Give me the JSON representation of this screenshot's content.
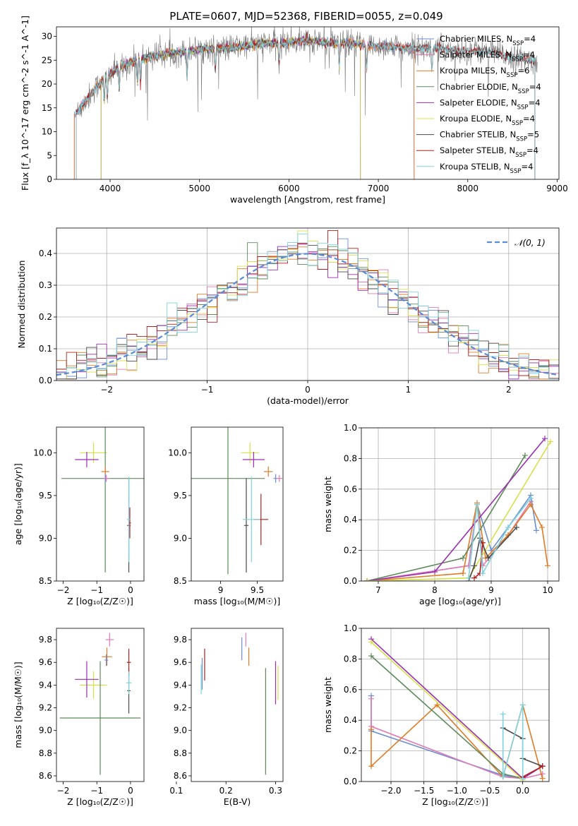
{
  "title": "PLATE=0607, MJD=52368, FIBERID=0055, z=0.049",
  "colors": {
    "chabrier_miles": "#6b8fd0",
    "salpeter_miles": "#e27ab5",
    "kroupa_miles": "#e07b26",
    "chabrier_elodie": "#5e8a5a",
    "salpeter_elodie": "#9a2fb0",
    "kroupa_elodie": "#d7e048",
    "chabrier_stelib": "#4a4a4a",
    "salpeter_stelib": "#b41f1f",
    "kroupa_stelib": "#7fd3dc",
    "normal": "#5b8ad6",
    "grid": "#b0b0b0"
  },
  "chart_data": [
    {
      "type": "line",
      "xlabel": "wavelength [Angstrom, rest frame]",
      "ylabel": "Flux [f_λ 10^-17 erg cm^-2 s^-1 A^-1]",
      "xlim": [
        3400,
        9020
      ],
      "ylim": [
        0,
        32
      ],
      "xticks": [
        "4000",
        "5000",
        "6000",
        "7000",
        "8000",
        "9000"
      ],
      "yticks": [
        "0",
        "5",
        "10",
        "15",
        "20",
        "25",
        "30"
      ],
      "legend_position": "right",
      "legend": [
        {
          "key": "chabrier_miles",
          "label": "Chabrier MILES, N",
          "sub": "SSP",
          "n": "=4"
        },
        {
          "key": "salpeter_miles",
          "label": "Salpeter MILES, N",
          "sub": "SSP",
          "n": "=4"
        },
        {
          "key": "kroupa_miles",
          "label": "Kroupa MILES, N",
          "sub": "SSP",
          "n": "=6"
        },
        {
          "key": "chabrier_elodie",
          "label": "Chabrier ELODIE, N",
          "sub": "SSP",
          "n": "=4"
        },
        {
          "key": "salpeter_elodie",
          "label": "Salpeter ELODIE, N",
          "sub": "SSP",
          "n": "=4"
        },
        {
          "key": "kroupa_elodie",
          "label": "Kroupa ELODIE, N",
          "sub": "SSP",
          "n": "=4"
        },
        {
          "key": "chabrier_stelib",
          "label": "Chabrier STELIB, N",
          "sub": "SSP",
          "n": "=5"
        },
        {
          "key": "salpeter_stelib",
          "label": "Salpeter STELIB, N",
          "sub": "SSP",
          "n": "=4"
        },
        {
          "key": "kroupa_stelib",
          "label": "Kroupa STELIB, N",
          "sub": "SSP",
          "n": "=4"
        }
      ],
      "data_spectrum": {
        "x": [
          3650,
          3750,
          3850,
          3950,
          4100,
          4300,
          4500,
          4700,
          4900,
          5100,
          5300,
          5500,
          5700,
          5900,
          6100,
          6300,
          6500,
          6700,
          6900,
          7100,
          7300,
          7500,
          7700,
          7900,
          8100,
          8300,
          8500,
          8700
        ],
        "y": [
          14.5,
          17,
          19.5,
          21.5,
          23.5,
          25,
          26,
          26.5,
          27,
          27.5,
          27.5,
          28,
          28.5,
          28.5,
          29,
          29,
          28.5,
          28.5,
          28,
          28,
          27.5,
          27.5,
          27.5,
          27,
          27,
          26.5,
          25.5,
          25
        ]
      },
      "model_ranges": {
        "chabrier_miles": [
          3600,
          7400
        ],
        "salpeter_miles": [
          3600,
          7400
        ],
        "kroupa_miles": [
          3600,
          7400
        ],
        "chabrier_elodie": [
          3900,
          6800
        ],
        "salpeter_elodie": [
          3900,
          6800
        ],
        "kroupa_elodie": [
          3900,
          6800
        ],
        "chabrier_stelib": [
          3620,
          8750
        ],
        "salpeter_stelib": [
          3620,
          8750
        ],
        "kroupa_stelib": [
          3620,
          8750
        ]
      },
      "absorption_lines": [
        3934,
        3969,
        4102,
        4307,
        4340,
        4861,
        5176,
        5890,
        6563,
        6870,
        7600
      ]
    },
    {
      "type": "bar",
      "subtype": "step-histogram",
      "xlabel": "(data-model)/error",
      "ylabel": "Normed distribution",
      "xlim": [
        -2.5,
        2.5
      ],
      "ylim": [
        0,
        0.48
      ],
      "xticks": [
        "−2",
        "−1",
        "0",
        "1",
        "2"
      ],
      "yticks": [
        "0.0",
        "0.1",
        "0.2",
        "0.3",
        "0.4"
      ],
      "bin_width": 0.1,
      "grid": true,
      "legend_position": "top-right",
      "legend": [
        {
          "key": "normal",
          "label": "𝒩(0, 1)"
        }
      ],
      "normal_curve": {
        "mean": 0,
        "sigma": 1
      }
    },
    {
      "type": "scatter",
      "subtype": "errorbar",
      "xlabel": "Z [log₁₀(Z/Z☉)]",
      "ylabel": "age  [log₁₀(age/yr)]",
      "xlim": [
        -2.2,
        0.4
      ],
      "ylim": [
        8.5,
        10.3
      ],
      "xticks": [
        -2,
        -1,
        0
      ],
      "yticks": [
        8.5,
        9.0,
        9.5,
        10.0
      ],
      "points": [
        {
          "key": "kroupa_elodie",
          "x": -1.1,
          "y": 10.0,
          "xerr": 0.4,
          "yerr": 0.12
        },
        {
          "key": "salpeter_elodie",
          "x": -1.3,
          "y": 9.92,
          "xerr": 0.35,
          "yerr": 0.09
        },
        {
          "key": "chabrier_elodie",
          "x": -0.75,
          "y": 9.7,
          "xerr": 1.3,
          "yerr": 1.1
        },
        {
          "key": "kroupa_miles",
          "x": -0.75,
          "y": 9.78,
          "xerr": 0.12,
          "yerr": 0.06
        },
        {
          "key": "chabrier_miles",
          "x": -0.75,
          "y": 9.7,
          "xerr": 0.06,
          "yerr": 0.05
        },
        {
          "key": "salpeter_miles",
          "x": -0.72,
          "y": 9.7,
          "xerr": 0.1,
          "yerr": 0.04
        },
        {
          "key": "chabrier_stelib",
          "x": -0.05,
          "y": 9.15,
          "xerr": 0.05,
          "yerr": 0.55
        },
        {
          "key": "salpeter_stelib",
          "x": -0.02,
          "y": 9.18,
          "xerr": 0.03,
          "yerr": 0.18
        },
        {
          "key": "kroupa_stelib",
          "x": -0.05,
          "y": 9.22,
          "xerr": 0.06,
          "yerr": 0.5
        }
      ]
    },
    {
      "type": "scatter",
      "subtype": "errorbar",
      "xlabel": "mass [log₁₀(M/M☉)]",
      "ylabel": "",
      "xlim": [
        8.6,
        9.85
      ],
      "ylim": [
        8.5,
        10.3
      ],
      "xticks": [
        9.0,
        9.5
      ],
      "yticks": [
        8.5,
        9.0,
        9.5,
        10.0
      ],
      "points": [
        {
          "key": "kroupa_elodie",
          "x": 9.4,
          "y": 10.0,
          "xerr": 0.12,
          "yerr": 0.12
        },
        {
          "key": "salpeter_elodie",
          "x": 9.45,
          "y": 9.92,
          "xerr": 0.15,
          "yerr": 0.09
        },
        {
          "key": "chabrier_elodie",
          "x": 9.1,
          "y": 9.7,
          "xerr": 0.5,
          "yerr": 1.12
        },
        {
          "key": "kroupa_miles",
          "x": 9.65,
          "y": 9.78,
          "xerr": 0.06,
          "yerr": 0.06
        },
        {
          "key": "chabrier_miles",
          "x": 9.75,
          "y": 9.7,
          "xerr": 0.03,
          "yerr": 0.05
        },
        {
          "key": "salpeter_miles",
          "x": 9.8,
          "y": 9.7,
          "xerr": 0.04,
          "yerr": 0.04
        },
        {
          "key": "chabrier_stelib",
          "x": 9.35,
          "y": 9.15,
          "xerr": 0.03,
          "yerr": 0.55
        },
        {
          "key": "salpeter_stelib",
          "x": 9.55,
          "y": 9.22,
          "xerr": 0.1,
          "yerr": 0.3
        },
        {
          "key": "kroupa_stelib",
          "x": 9.42,
          "y": 9.22,
          "xerr": 0.12,
          "yerr": 0.5
        }
      ]
    },
    {
      "type": "line",
      "xlabel": "age  [log₁₀(age/yr)]",
      "ylabel": "mass weight",
      "xlim": [
        6.7,
        10.2
      ],
      "ylim": [
        0,
        1.0
      ],
      "xticks": [
        7,
        8,
        9,
        10
      ],
      "yticks": [
        "0.0",
        "0.2",
        "0.4",
        "0.6",
        "0.8",
        "1.0"
      ],
      "grid": true,
      "series": [
        {
          "key": "chabrier_miles",
          "x": [
            6.8,
            8.6,
            8.75,
            9.0,
            9.3,
            9.7,
            9.8
          ],
          "y": [
            0.0,
            0.1,
            0.5,
            0.2,
            0.35,
            0.56,
            0.33
          ]
        },
        {
          "key": "salpeter_miles",
          "x": [
            6.8,
            8.6,
            8.75,
            8.85,
            9.3,
            9.7
          ],
          "y": [
            0.0,
            0.1,
            0.5,
            0.1,
            0.3,
            0.52
          ]
        },
        {
          "key": "kroupa_miles",
          "x": [
            6.8,
            8.5,
            8.75,
            8.9,
            9.3,
            9.7,
            9.9,
            10.0
          ],
          "y": [
            0.0,
            0.05,
            0.51,
            0.15,
            0.3,
            0.5,
            0.35,
            0.1
          ]
        },
        {
          "key": "chabrier_elodie",
          "x": [
            6.8,
            8.5,
            9.6
          ],
          "y": [
            0.0,
            0.15,
            0.82
          ]
        },
        {
          "key": "salpeter_elodie",
          "x": [
            6.8,
            8.0,
            9.95
          ],
          "y": [
            0.0,
            0.06,
            0.93
          ]
        },
        {
          "key": "kroupa_elodie",
          "x": [
            6.8,
            8.6,
            10.05
          ],
          "y": [
            0.0,
            0.02,
            0.91
          ]
        },
        {
          "key": "chabrier_stelib",
          "x": [
            8.6,
            8.7,
            8.8,
            8.95,
            9.45
          ],
          "y": [
            0.0,
            0.1,
            0.28,
            0.15,
            0.35
          ]
        },
        {
          "key": "salpeter_stelib",
          "x": [
            8.7,
            8.8,
            8.85
          ],
          "y": [
            0.02,
            0.05,
            0.25
          ]
        },
        {
          "key": "kroupa_stelib",
          "x": [
            8.6,
            8.75,
            8.85,
            9.3,
            9.7
          ],
          "y": [
            0.02,
            0.5,
            0.05,
            0.35,
            0.54
          ]
        }
      ]
    },
    {
      "type": "scatter",
      "subtype": "errorbar",
      "xlabel": "Z [log₁₀(Z/Z☉)]",
      "ylabel": "mass [log₁₀(M/M☉)]",
      "xlim": [
        -2.2,
        0.4
      ],
      "ylim": [
        8.55,
        9.9
      ],
      "xticks": [
        -2,
        -1,
        0
      ],
      "yticks": [
        8.6,
        8.8,
        9.0,
        9.2,
        9.4,
        9.6,
        9.8
      ],
      "points": [
        {
          "key": "kroupa_elodie",
          "x": -1.1,
          "y": 9.4,
          "xerr": 0.4,
          "yerr": 0.12
        },
        {
          "key": "salpeter_elodie",
          "x": -1.3,
          "y": 9.45,
          "xerr": 0.35,
          "yerr": 0.16
        },
        {
          "key": "chabrier_elodie",
          "x": -0.9,
          "y": 9.11,
          "xerr": 1.2,
          "yerr": 0.5
        },
        {
          "key": "kroupa_miles",
          "x": -0.7,
          "y": 9.65,
          "xerr": 0.15,
          "yerr": 0.08
        },
        {
          "key": "chabrier_miles",
          "x": -0.72,
          "y": 9.62,
          "xerr": 0.05,
          "yerr": 0.05
        },
        {
          "key": "salpeter_miles",
          "x": -0.62,
          "y": 9.8,
          "xerr": 0.12,
          "yerr": 0.06
        },
        {
          "key": "chabrier_stelib",
          "x": -0.05,
          "y": 9.35,
          "xerr": 0.05,
          "yerr": 0.2
        },
        {
          "key": "salpeter_stelib",
          "x": -0.05,
          "y": 9.6,
          "xerr": 0.06,
          "yerr": 0.12
        },
        {
          "key": "kroupa_stelib",
          "x": -0.05,
          "y": 9.42,
          "xerr": 0.08,
          "yerr": 0.1
        }
      ]
    },
    {
      "type": "scatter",
      "subtype": "errorbar",
      "xlabel": "E(B-V)",
      "ylabel": "",
      "xlim": [
        0.13,
        0.315
      ],
      "ylim": [
        8.55,
        9.9
      ],
      "xticks": [
        "0.1",
        "0.2",
        "0.3"
      ],
      "yticks": [
        8.6,
        8.8,
        9.0,
        9.2,
        9.4,
        9.6,
        9.8
      ],
      "points": [
        {
          "key": "kroupa_stelib",
          "x": 0.15,
          "y": 9.45,
          "yerr": 0.13
        },
        {
          "key": "chabrier_miles",
          "x": 0.152,
          "y": 9.5,
          "yerr": 0.14
        },
        {
          "key": "salpeter_stelib",
          "x": 0.157,
          "y": 9.58,
          "yerr": 0.14
        },
        {
          "key": "chabrier_miles",
          "x": 0.232,
          "y": 9.72,
          "yerr": 0.1
        },
        {
          "key": "salpeter_miles",
          "x": 0.24,
          "y": 9.8,
          "yerr": 0.06
        },
        {
          "key": "kroupa_miles",
          "x": 0.246,
          "y": 9.65,
          "yerr": 0.08
        },
        {
          "key": "chabrier_elodie",
          "x": 0.28,
          "y": 9.08,
          "yerr": 0.47
        },
        {
          "key": "salpeter_elodie",
          "x": 0.3,
          "y": 9.42,
          "yerr": 0.19
        },
        {
          "key": "kroupa_elodie",
          "x": 0.305,
          "y": 9.42,
          "yerr": 0.15
        }
      ]
    },
    {
      "type": "line",
      "xlabel": "Z [log₁₀(Z/Z☉)]",
      "ylabel": "mass weight",
      "xlim": [
        -2.45,
        0.4
      ],
      "ylim": [
        0,
        1.0
      ],
      "xticks": [
        "−2.0",
        "−1.5",
        "−1.0",
        "−0.5",
        "0.0"
      ],
      "yticks": [
        "0.0",
        "0.2",
        "0.4",
        "0.6",
        "0.8",
        "1.0"
      ],
      "grid": true,
      "series": [
        {
          "key": "chabrier_miles",
          "x": [
            -2.3,
            -2.3,
            -0.3,
            0.0
          ],
          "y": [
            0.56,
            0.33,
            0.04,
            0.02
          ]
        },
        {
          "key": "salpeter_miles",
          "x": [
            -2.3,
            -2.3,
            -0.3,
            0.0,
            0.3
          ],
          "y": [
            0.54,
            0.36,
            0.03,
            0.02,
            0.05
          ]
        },
        {
          "key": "kroupa_miles",
          "x": [
            -2.3,
            -2.3,
            -1.3,
            -0.3,
            0.0,
            0.3
          ],
          "y": [
            0.34,
            0.1,
            0.5,
            0.03,
            0.5,
            0.02
          ]
        },
        {
          "key": "chabrier_elodie",
          "x": [
            -2.3,
            -0.3,
            0.0
          ],
          "y": [
            0.82,
            0.05,
            0.02
          ]
        },
        {
          "key": "salpeter_elodie",
          "x": [
            -2.3,
            0.0,
            0.3
          ],
          "y": [
            0.93,
            0.02,
            0.1
          ]
        },
        {
          "key": "kroupa_elodie",
          "x": [
            -2.3,
            0.0
          ],
          "y": [
            0.91,
            0.01
          ]
        },
        {
          "key": "chabrier_stelib",
          "x": [
            -0.3,
            0.0,
            0.0,
            0.0,
            0.3
          ],
          "y": [
            0.35,
            0.28,
            0.15,
            0.15,
            0.1
          ]
        },
        {
          "key": "salpeter_stelib",
          "x": [
            0.0,
            0.3
          ],
          "y": [
            0.03,
            0.1
          ]
        },
        {
          "key": "kroupa_stelib",
          "x": [
            -0.3,
            -0.3,
            0.0,
            0.0
          ],
          "y": [
            0.44,
            0.03,
            0.5,
            0.02
          ]
        }
      ]
    }
  ]
}
